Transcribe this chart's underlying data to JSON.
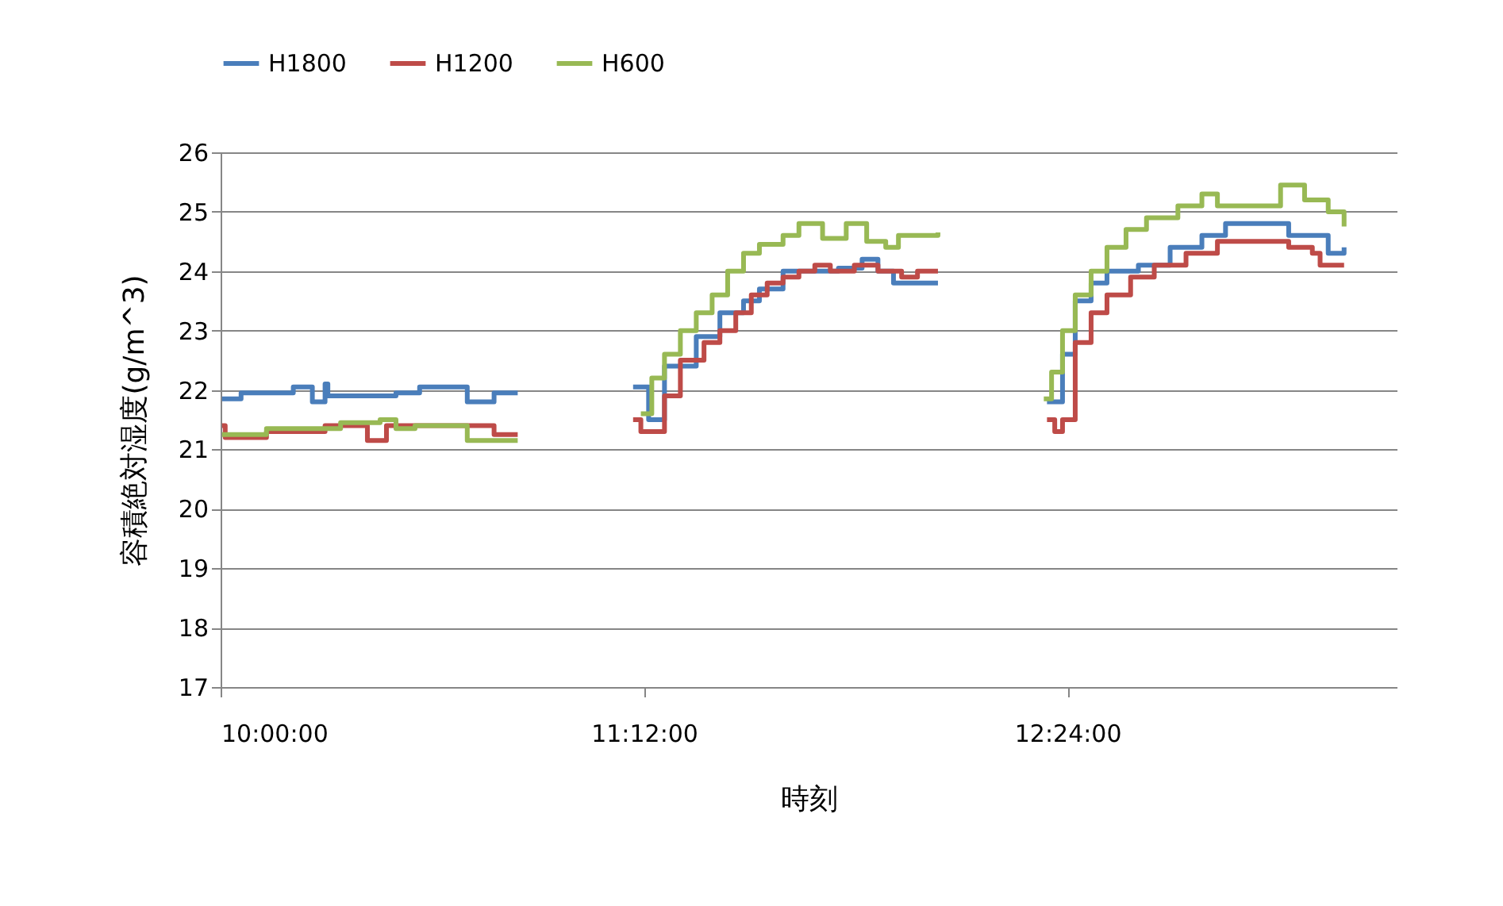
{
  "chart_data": {
    "type": "step",
    "xlabel": "時刻",
    "ylabel": "容積絶対湿度(g/m^3)",
    "xlim": [
      10,
      13.333
    ],
    "xticks": [
      {
        "value": 10,
        "label": "10:00:00"
      },
      {
        "value": 11.2,
        "label": "11:12:00"
      },
      {
        "value": 12.4,
        "label": "12:24:00"
      }
    ],
    "ylim": [
      17,
      26
    ],
    "yticks": [
      17,
      18,
      19,
      20,
      21,
      22,
      23,
      24,
      25,
      26
    ],
    "grid": "y",
    "legend": "top",
    "series": [
      {
        "name": "H1800",
        "color": "#4a7ebb",
        "x": [
          10.004,
          10.058,
          10.206,
          10.26,
          10.296,
          10.304,
          10.497,
          10.564,
          10.699,
          10.775,
          10.842,
          10.9,
          11.169,
          11.204,
          11.213,
          11.258,
          11.348,
          11.415,
          11.482,
          11.527,
          11.594,
          11.661,
          11.751,
          11.818,
          11.863,
          11.907,
          11.975,
          12.033,
          12.2,
          12.342,
          12.386,
          12.422,
          12.467,
          12.512,
          12.601,
          12.691,
          12.781,
          12.848,
          12.982,
          13.027,
          13.116,
          13.139,
          13.184
        ],
        "values": [
          21.85,
          21.95,
          22.05,
          21.8,
          22.1,
          21.9,
          21.95,
          22.05,
          21.8,
          21.95,
          21.95,
          null,
          22.05,
          22.05,
          21.5,
          22.4,
          22.9,
          23.3,
          23.5,
          23.7,
          24.0,
          24.0,
          24.05,
          24.2,
          24.0,
          23.8,
          23.8,
          23.8,
          null,
          21.8,
          22.6,
          23.5,
          23.8,
          24.0,
          24.1,
          24.4,
          24.6,
          24.8,
          24.8,
          24.6,
          24.6,
          24.3,
          24.4
        ]
      },
      {
        "name": "H1200",
        "color": "#be4b48",
        "x": [
          10.004,
          10.013,
          10.13,
          10.296,
          10.416,
          10.47,
          10.775,
          10.842,
          10.9,
          11.169,
          11.191,
          11.236,
          11.258,
          11.303,
          11.37,
          11.415,
          11.46,
          11.504,
          11.549,
          11.594,
          11.639,
          11.684,
          11.728,
          11.796,
          11.863,
          11.93,
          11.975,
          12.033,
          12.2,
          12.342,
          12.364,
          12.386,
          12.422,
          12.467,
          12.512,
          12.579,
          12.646,
          12.736,
          12.825,
          12.937,
          13.027,
          13.094,
          13.116,
          13.184
        ],
        "values": [
          21.4,
          21.2,
          21.3,
          21.4,
          21.15,
          21.4,
          21.25,
          21.25,
          null,
          21.5,
          21.3,
          21.3,
          21.9,
          22.5,
          22.8,
          23.0,
          23.3,
          23.6,
          23.8,
          23.9,
          24.0,
          24.1,
          24.0,
          24.1,
          24.0,
          23.9,
          24.0,
          24.0,
          null,
          21.5,
          21.3,
          21.5,
          22.8,
          23.3,
          23.6,
          23.9,
          24.1,
          24.3,
          24.5,
          24.5,
          24.4,
          24.3,
          24.1,
          24.1
        ]
      },
      {
        "name": "H600",
        "color": "#98b954",
        "x": [
          10.004,
          10.13,
          10.34,
          10.452,
          10.497,
          10.551,
          10.699,
          10.842,
          10.9,
          11.191,
          11.222,
          11.258,
          11.303,
          11.348,
          11.393,
          11.437,
          11.482,
          11.527,
          11.594,
          11.639,
          11.706,
          11.773,
          11.831,
          11.885,
          11.921,
          12.033,
          12.2,
          12.333,
          12.355,
          12.386,
          12.422,
          12.467,
          12.512,
          12.566,
          12.624,
          12.713,
          12.781,
          12.825,
          12.96,
          13.004,
          13.072,
          13.139,
          13.184
        ],
        "values": [
          21.25,
          21.35,
          21.45,
          21.5,
          21.35,
          21.4,
          21.15,
          21.15,
          null,
          21.6,
          22.2,
          22.6,
          23.0,
          23.3,
          23.6,
          24.0,
          24.3,
          24.45,
          24.6,
          24.8,
          24.55,
          24.8,
          24.5,
          24.4,
          24.6,
          24.65,
          null,
          21.85,
          22.3,
          23.0,
          23.6,
          24.0,
          24.4,
          24.7,
          24.9,
          25.1,
          25.3,
          25.1,
          25.1,
          25.45,
          25.2,
          25.0,
          24.75
        ]
      }
    ]
  }
}
